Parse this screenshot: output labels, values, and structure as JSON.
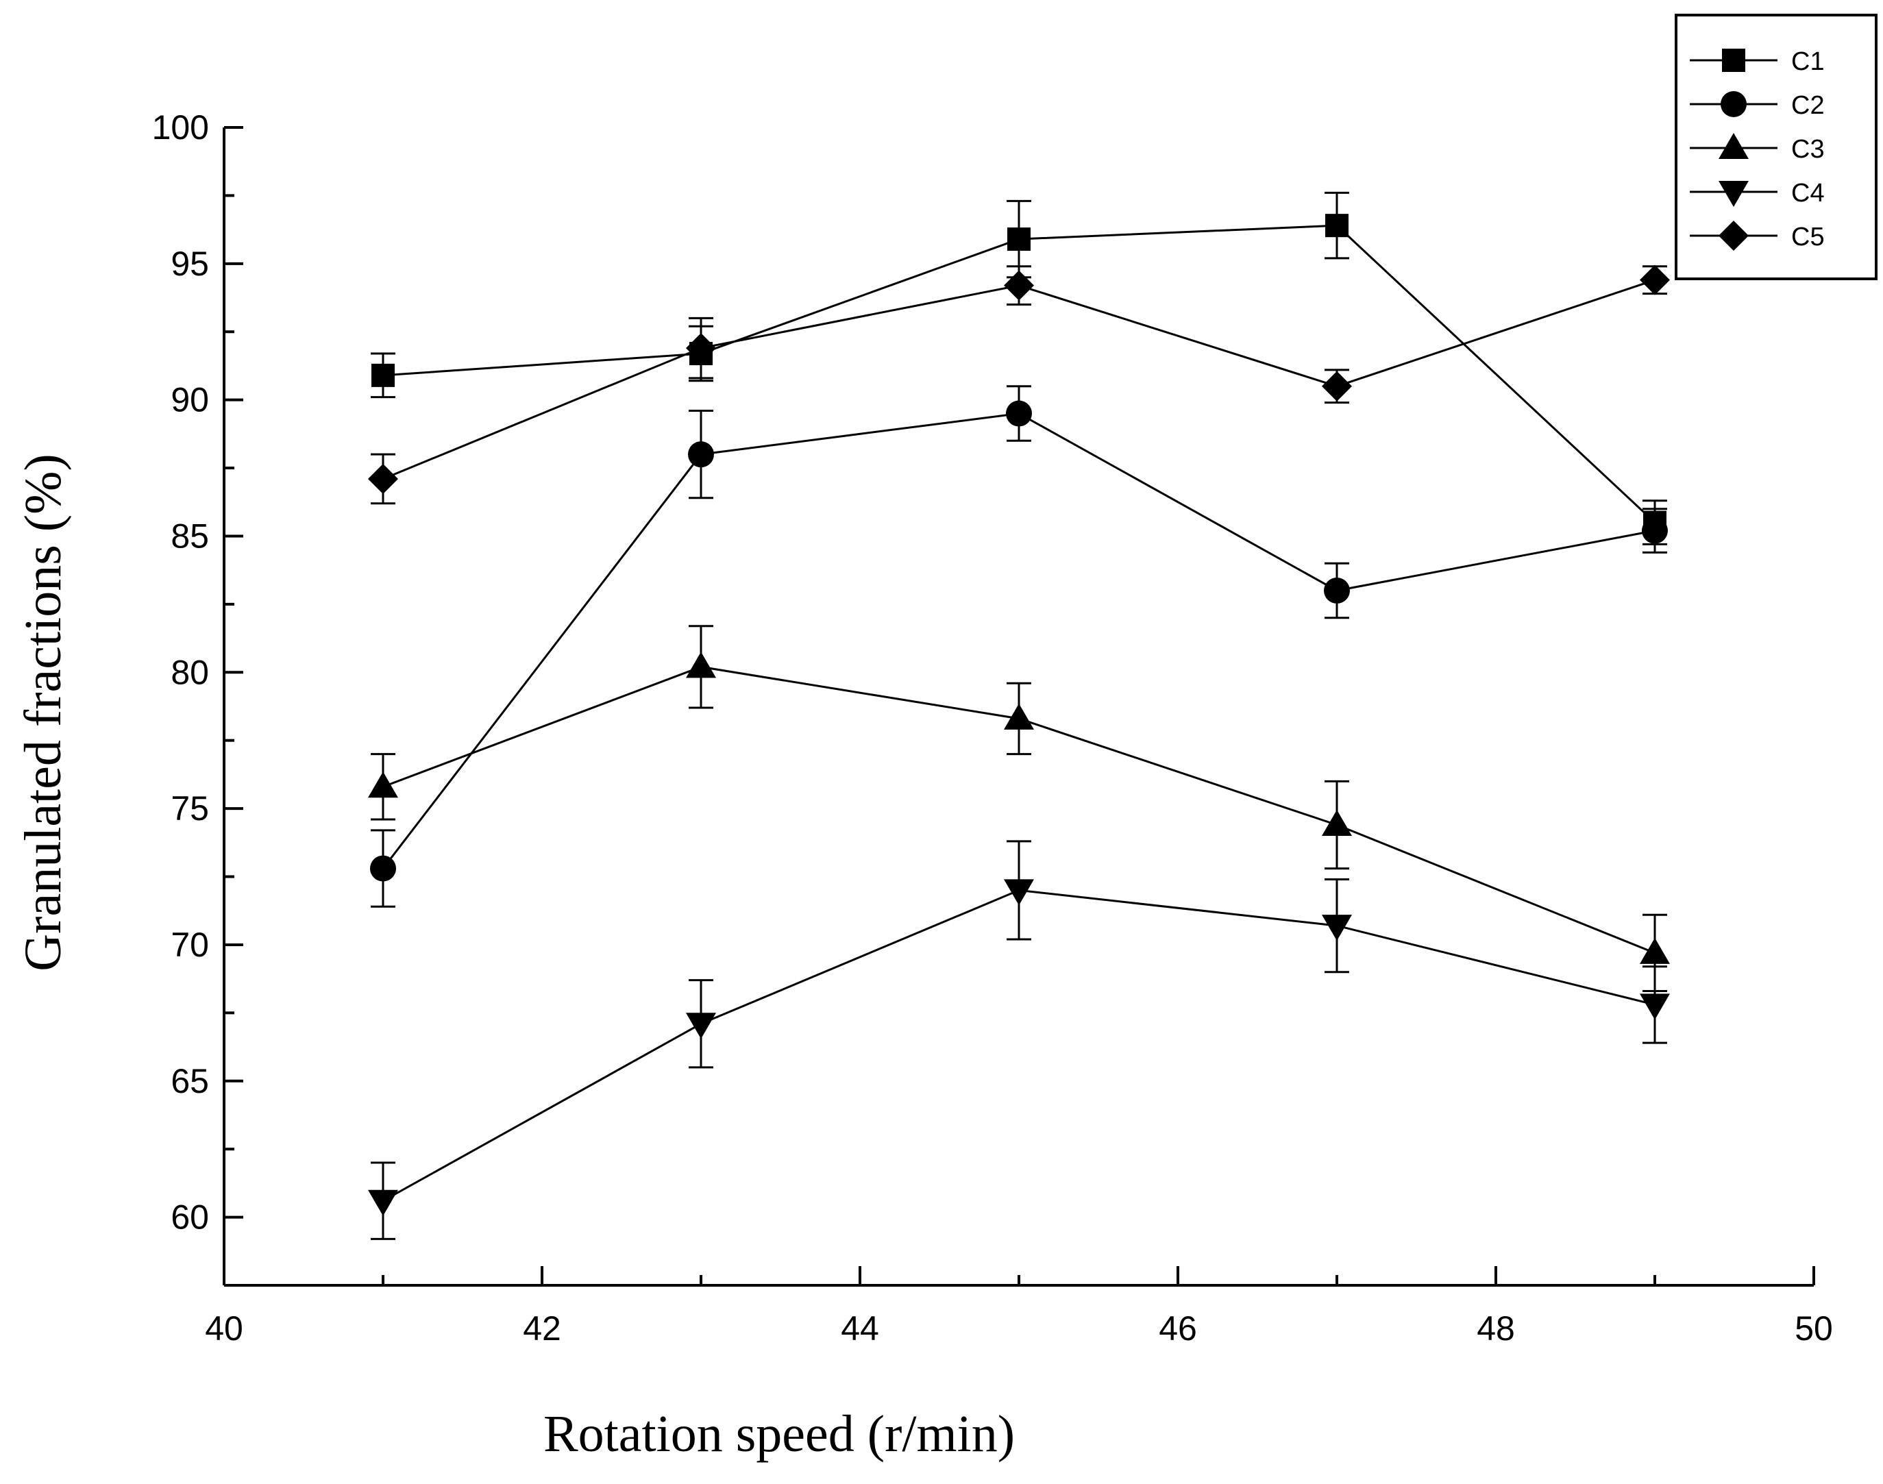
{
  "chart_data": {
    "type": "line",
    "title": "",
    "xlabel": "Rotation speed (r/min)",
    "ylabel": "Granulated fractions (%)",
    "xlim": [
      40,
      50
    ],
    "ylim": [
      57.5,
      100
    ],
    "xticks": [
      40,
      42,
      44,
      46,
      48,
      50
    ],
    "yticks": [
      60,
      65,
      70,
      75,
      80,
      85,
      90,
      95,
      100
    ],
    "grid": false,
    "legend_position": "top-right",
    "x": [
      41,
      43,
      45,
      47,
      49
    ],
    "series": [
      {
        "name": "C1",
        "marker": "square",
        "values": [
          90.9,
          91.7,
          95.9,
          96.4,
          85.5
        ],
        "errors": [
          0.8,
          1.0,
          1.4,
          1.2,
          0.8
        ]
      },
      {
        "name": "C2",
        "marker": "circle",
        "values": [
          72.8,
          88.0,
          89.5,
          83.0,
          85.2
        ],
        "errors": [
          1.4,
          1.6,
          1.0,
          1.0,
          0.8
        ]
      },
      {
        "name": "C3",
        "marker": "triangle-up",
        "values": [
          75.8,
          80.2,
          78.3,
          74.4,
          69.7
        ],
        "errors": [
          1.2,
          1.5,
          1.3,
          1.6,
          1.4
        ]
      },
      {
        "name": "C4",
        "marker": "triangle-down",
        "values": [
          60.6,
          67.1,
          72.0,
          70.7,
          67.8
        ],
        "errors": [
          1.4,
          1.6,
          1.8,
          1.7,
          1.4
        ]
      },
      {
        "name": "C5",
        "marker": "diamond",
        "values": [
          87.1,
          91.9,
          94.2,
          90.5,
          94.4
        ],
        "errors": [
          0.9,
          1.1,
          0.7,
          0.6,
          0.5
        ]
      }
    ]
  }
}
